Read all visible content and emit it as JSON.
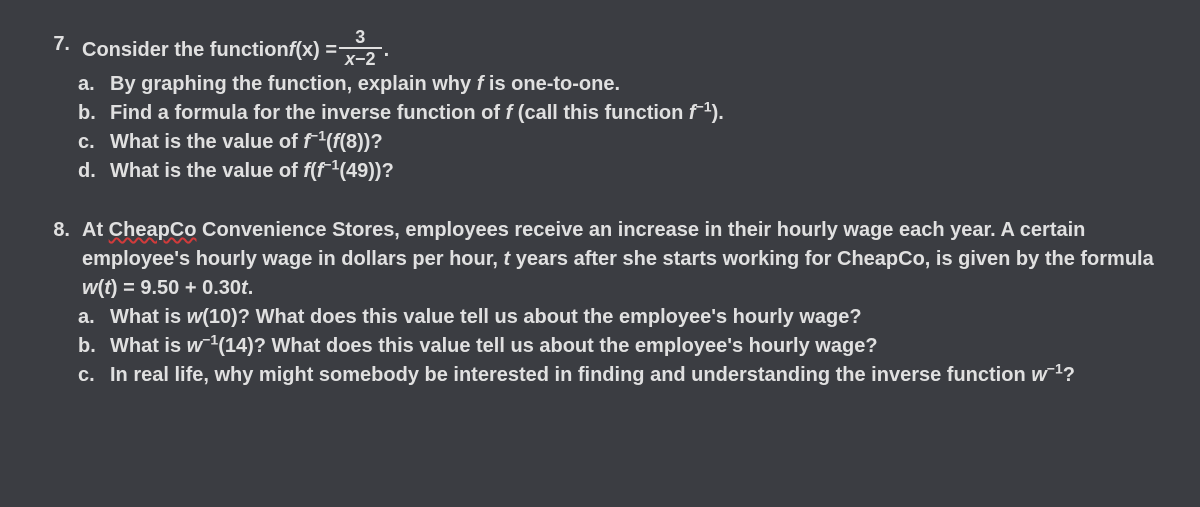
{
  "background_color": "#3b3d42",
  "text_color": "#e0e0e0",
  "font_family": "Verdana, Geneva, sans-serif",
  "font_size_pt": 15,
  "font_weight": "bold",
  "wavy_underline_color": "#d23b3b",
  "problems": [
    {
      "number": "7.",
      "intro_prefix": "Consider the function ",
      "intro_fn_var": "f",
      "intro_fn_paren": "(x) = ",
      "frac_num": "3",
      "frac_den": "x−2",
      "intro_suffix": " .",
      "subs": [
        {
          "letter": "a.",
          "text": "By graphing the function, explain why f is one-to-one."
        },
        {
          "letter": "b.",
          "text": "Find a formula for the inverse function of f (call this function f⁻¹)."
        },
        {
          "letter": "c.",
          "text": "What is the value of f⁻¹(f(8))?"
        },
        {
          "letter": "d.",
          "text": "What is the value of f(f⁻¹(49))?"
        }
      ]
    },
    {
      "number": "8.",
      "intro_plain_1": "At ",
      "intro_wavy": "CheapCo",
      "intro_plain_2": " Convenience Stores, employees receive an increase in their hourly wage each year. A certain employee's hourly wage in dollars per hour, t years after she starts working for CheapCo, is given by the formula w(t) = 9.50 + 0.30t.",
      "subs": [
        {
          "letter": "a.",
          "text": "What is w(10)? What does this value tell us about the employee's hourly wage?"
        },
        {
          "letter": "b.",
          "text": "What is w⁻¹(14)? What does this value tell us about the employee's hourly wage?"
        },
        {
          "letter": "c.",
          "text": "In real life, why might somebody be interested in finding and understanding the inverse function w⁻¹?"
        }
      ]
    }
  ]
}
